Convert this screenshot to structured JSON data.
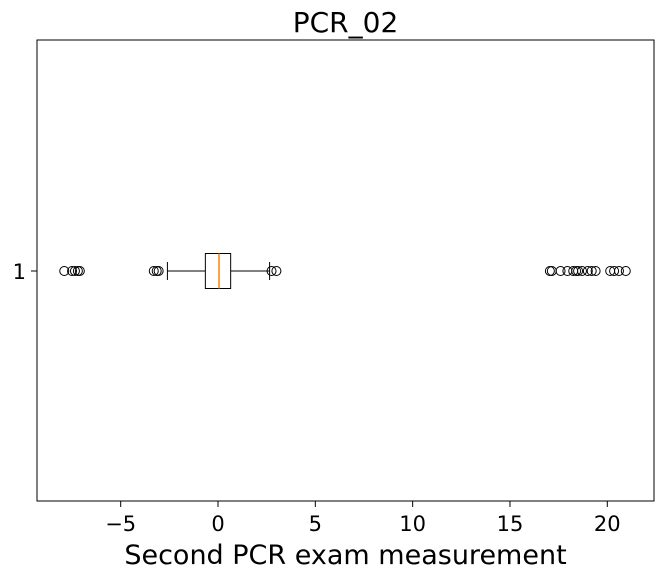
{
  "chart_data": {
    "type": "boxplot",
    "orientation": "horizontal",
    "title": "PCR_02",
    "xlabel": "Second PCR exam measurement",
    "ylabel": "",
    "xlim": [
      -9.3,
      22.4
    ],
    "x_ticks": [
      -5,
      0,
      5,
      10,
      15,
      20
    ],
    "x_tick_labels": [
      "−5",
      "0",
      "5",
      "10",
      "15",
      "20"
    ],
    "y_tick_labels": [
      "1"
    ],
    "grid": false,
    "legend": "none",
    "box": {
      "category": "1",
      "whisker_low": -2.6,
      "q1": -0.65,
      "median": 0.05,
      "q3": 0.65,
      "whisker_high": 2.65,
      "outliers_low": [
        -7.9,
        -7.5,
        -7.35,
        -7.2,
        -7.1,
        -3.3,
        -3.15,
        -3.05
      ],
      "outliers_high": [
        2.75,
        3.0,
        17.05,
        17.15,
        17.6,
        17.95,
        18.25,
        18.4,
        18.5,
        18.7,
        19.0,
        19.2,
        19.4,
        20.15,
        20.35,
        20.6,
        20.95
      ]
    },
    "colors": {
      "box": "#000000",
      "median": "#ff7f0e",
      "outlier_edge": "#000000"
    }
  }
}
